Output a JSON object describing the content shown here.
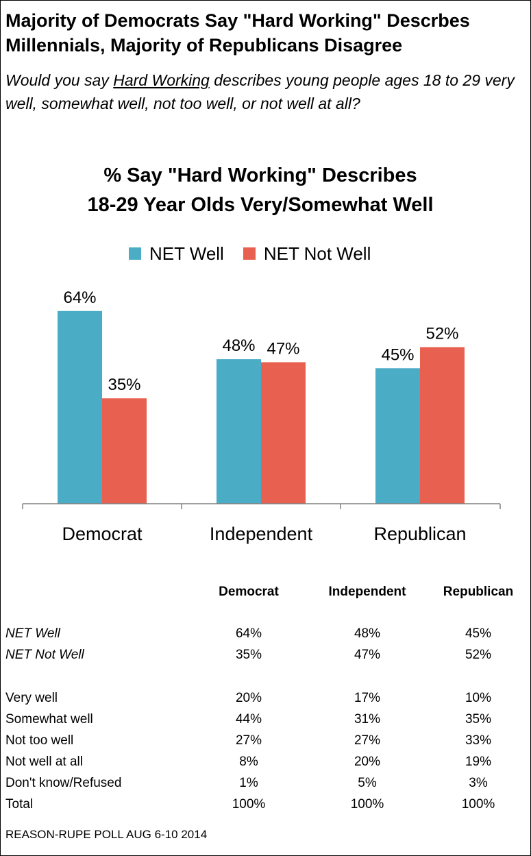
{
  "headline": "Majority of Democrats Say \"Hard Working\" Descrbes Millennials, Majority of Republicans Disagree",
  "question": {
    "prefix": "Would you say ",
    "underlined": "Hard Working",
    "suffix": " describes young people ages 18 to 29 very well, somewhat well, not too well, or not well at all?"
  },
  "colors": {
    "net_well": "#4BACC6",
    "net_not_well": "#E8604F",
    "axis": "#808080"
  },
  "chart_data": {
    "type": "bar",
    "title_line1": "% Say \"Hard Working\" Describes",
    "title_line2": "18-29 Year Olds Very/Somewhat Well",
    "categories": [
      "Democrat",
      "Independent",
      "Republican"
    ],
    "series": [
      {
        "name": "NET Well",
        "values": [
          64,
          48,
          45
        ]
      },
      {
        "name": "NET  Not Well",
        "values": [
          35,
          47,
          52
        ]
      }
    ],
    "value_labels": [
      [
        "64%",
        "48%",
        "45%"
      ],
      [
        "35%",
        "47%",
        "52%"
      ]
    ],
    "legend_position": "top",
    "grid": false,
    "ylim": [
      0,
      66
    ]
  },
  "table": {
    "columns": [
      "Democrat",
      "Independent",
      "Republican"
    ],
    "net_rows": [
      {
        "label": "NET Well",
        "values": [
          "64%",
          "48%",
          "45%"
        ]
      },
      {
        "label": "NET  Not Well",
        "values": [
          "35%",
          "47%",
          "52%"
        ]
      }
    ],
    "rows": [
      {
        "label": "Very well",
        "values": [
          "20%",
          "17%",
          "10%"
        ]
      },
      {
        "label": "Somewhat well",
        "values": [
          "44%",
          "31%",
          "35%"
        ]
      },
      {
        "label": "Not too well",
        "values": [
          "27%",
          "27%",
          "33%"
        ]
      },
      {
        "label": "Not well at all",
        "values": [
          "8%",
          "20%",
          "19%"
        ]
      },
      {
        "label": "Don't know/Refused",
        "values": [
          "1%",
          "5%",
          "3%"
        ]
      },
      {
        "label": "Total",
        "values": [
          "100%",
          "100%",
          "100%"
        ]
      }
    ]
  },
  "source": "REASON-RUPE POLL AUG 6-10 2014"
}
